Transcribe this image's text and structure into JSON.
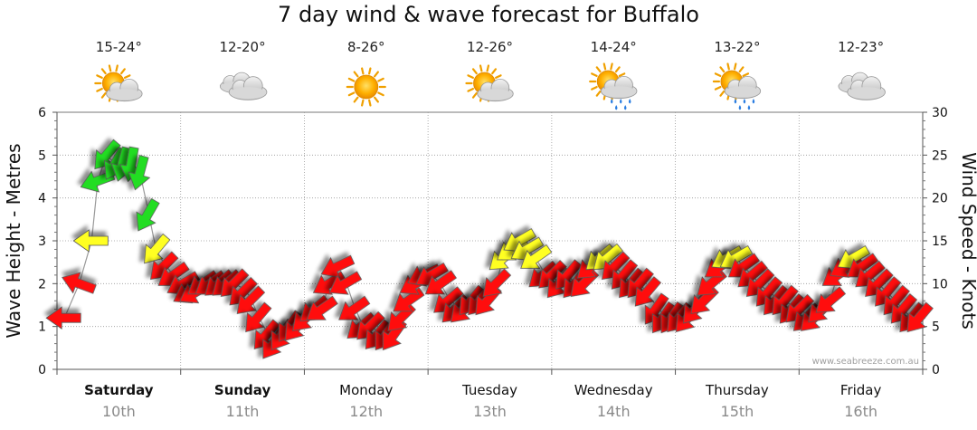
{
  "title": "7 day wind & wave forecast for Buffalo",
  "credit": "www.seabreeze.com.au",
  "days": [
    {
      "name": "Saturday",
      "date": "10th",
      "temp": "15-24°",
      "icon": "sun-cloud-icon",
      "bold": true
    },
    {
      "name": "Sunday",
      "date": "11th",
      "temp": "12-20°",
      "icon": "cloud-icon",
      "bold": true
    },
    {
      "name": "Monday",
      "date": "12th",
      "temp": "8-26°",
      "icon": "sun-icon",
      "bold": false
    },
    {
      "name": "Tuesday",
      "date": "13th",
      "temp": "12-26°",
      "icon": "sun-cloud-icon",
      "bold": false
    },
    {
      "name": "Wednesday",
      "date": "14th",
      "temp": "14-24°",
      "icon": "sun-cloud-rain-icon",
      "bold": false
    },
    {
      "name": "Thursday",
      "date": "15th",
      "temp": "13-22°",
      "icon": "sun-cloud-rain-icon",
      "bold": false
    },
    {
      "name": "Friday",
      "date": "16th",
      "temp": "12-23°",
      "icon": "cloud-icon",
      "bold": false
    }
  ],
  "chart_data": {
    "type": "line",
    "title": "7 day wind & wave forecast for Buffalo",
    "ylabel_left": "Wave Height - Metres",
    "ylabel_right": "Wind Speed - Knots",
    "ylim_left": [
      0,
      6
    ],
    "ylim_right": [
      0,
      30
    ],
    "yticks_left": [
      "0",
      "1",
      "2",
      "3",
      "4",
      "5",
      "6"
    ],
    "yticks_right": [
      "0",
      "5",
      "10",
      "15",
      "20",
      "25",
      "30"
    ],
    "x_range_days": [
      0,
      7
    ],
    "grid": true,
    "colors": {
      "green": "#22dd22",
      "yellow": "#ffff22",
      "red": "#ff1111",
      "line": "#999999"
    },
    "wind_series": {
      "name": "Wind Speed",
      "unit": "knots",
      "x_days": [
        0.06,
        0.18,
        0.28,
        0.33,
        0.4,
        0.47,
        0.53,
        0.6,
        0.67,
        0.73,
        0.8,
        0.86,
        0.94,
        1.02,
        1.07,
        1.12,
        1.18,
        1.24,
        1.31,
        1.37,
        1.43,
        1.5,
        1.56,
        1.62,
        1.69,
        1.75,
        1.82,
        1.88,
        1.94,
        2.01,
        2.08,
        2.14,
        2.2,
        2.27,
        2.33,
        2.4,
        2.46,
        2.53,
        2.59,
        2.66,
        2.72,
        2.78,
        2.84,
        2.9,
        2.97,
        3.03,
        3.1,
        3.16,
        3.22,
        3.29,
        3.35,
        3.42,
        3.48,
        3.55,
        3.61,
        3.68,
        3.74,
        3.8,
        3.87,
        3.93,
        4.0,
        4.06,
        4.13,
        4.19,
        4.26,
        4.32,
        4.39,
        4.45,
        4.51,
        4.58,
        4.64,
        4.71,
        4.77,
        4.84,
        4.9,
        4.97,
        5.03,
        5.1,
        5.16,
        5.23,
        5.29,
        5.36,
        5.42,
        5.49,
        5.55,
        5.62,
        5.68,
        5.75,
        5.81,
        5.88,
        5.94,
        6.0,
        6.06,
        6.12,
        6.18,
        6.25,
        6.31,
        6.38,
        6.44,
        6.51,
        6.57,
        6.64,
        6.71,
        6.78,
        6.84,
        6.91,
        6.97
      ],
      "values": [
        6,
        10,
        15,
        22,
        25,
        24,
        24,
        24,
        23,
        18,
        14,
        12,
        11,
        10,
        9,
        9,
        10,
        10,
        10,
        10,
        10,
        9,
        8,
        6,
        4,
        3,
        4,
        5,
        5,
        6,
        7,
        7,
        10,
        12,
        10,
        7,
        5,
        5,
        4,
        4,
        4,
        6,
        8,
        10,
        11,
        11,
        10,
        8,
        7,
        7,
        8,
        8,
        8,
        10,
        13,
        14,
        15,
        14,
        13,
        11,
        11,
        10,
        11,
        10,
        10,
        12,
        13,
        13,
        12,
        11,
        10,
        10,
        9,
        7,
        6,
        6,
        6,
        6,
        7,
        8,
        10,
        12,
        13,
        13,
        12,
        11,
        10,
        9,
        8,
        8,
        7,
        7,
        6,
        6,
        7,
        8,
        11,
        12,
        13,
        12,
        11,
        10,
        9,
        8,
        7,
        6,
        6
      ],
      "directions_deg": [
        270,
        250,
        270,
        290,
        320,
        330,
        345,
        350,
        345,
        330,
        320,
        315,
        305,
        300,
        300,
        300,
        305,
        305,
        310,
        310,
        315,
        315,
        315,
        320,
        320,
        325,
        325,
        325,
        320,
        315,
        310,
        305,
        300,
        295,
        300,
        305,
        310,
        315,
        320,
        325,
        325,
        315,
        305,
        300,
        295,
        300,
        305,
        310,
        315,
        315,
        320,
        320,
        320,
        315,
        310,
        305,
        300,
        300,
        305,
        310,
        315,
        320,
        320,
        320,
        315,
        310,
        310,
        310,
        315,
        320,
        320,
        320,
        320,
        325,
        325,
        325,
        320,
        320,
        320,
        315,
        310,
        305,
        300,
        300,
        305,
        310,
        315,
        320,
        320,
        320,
        320,
        315,
        315,
        315,
        315,
        310,
        305,
        300,
        300,
        305,
        310,
        315,
        320,
        320,
        320,
        320,
        320
      ]
    },
    "wave_series": {
      "name": "Wave Height",
      "unit": "metres",
      "x_days": [
        0.06,
        0.18,
        0.28,
        0.33,
        0.4,
        0.47,
        0.53,
        0.6,
        0.67,
        0.73,
        0.8,
        0.86,
        0.94,
        1.02,
        1.07,
        1.12,
        1.18,
        1.24,
        1.31,
        1.37,
        1.43,
        1.5,
        1.56,
        1.62,
        1.69,
        1.75,
        1.82,
        1.88,
        1.94,
        2.01,
        2.08,
        2.14,
        2.2,
        2.27,
        2.33,
        2.4,
        2.46,
        2.53,
        2.59,
        2.66,
        2.72,
        2.78,
        2.84,
        2.9,
        2.97,
        3.03,
        3.1,
        3.16,
        3.22,
        3.29,
        3.35,
        3.42,
        3.48,
        3.55,
        3.61,
        3.68,
        3.74,
        3.8,
        3.87,
        3.93,
        4.0,
        4.06,
        4.13,
        4.19,
        4.26,
        4.32,
        4.39,
        4.45,
        4.51,
        4.58,
        4.64,
        4.71,
        4.77,
        4.84,
        4.9,
        4.97,
        5.03,
        5.1,
        5.16,
        5.23,
        5.29,
        5.36,
        5.42,
        5.49,
        5.55,
        5.62,
        5.68,
        5.75,
        5.81,
        5.88,
        5.94,
        6.0,
        6.06,
        6.12,
        6.18,
        6.25,
        6.31,
        6.38,
        6.44,
        6.51,
        6.57,
        6.64,
        6.71,
        6.78,
        6.84,
        6.91,
        6.97
      ],
      "values": [
        1.2,
        2.0,
        3.0,
        4.4,
        5.0,
        4.8,
        4.7,
        4.7,
        4.6,
        3.8,
        2.8,
        2.5,
        2.2,
        2.0,
        1.9,
        1.9,
        2.0,
        2.0,
        2.0,
        2.0,
        2.0,
        1.9,
        1.7,
        1.3,
        0.9,
        0.8,
        0.9,
        1.0,
        1.1,
        1.2,
        1.3,
        1.4,
        2.0,
        2.4,
        2.1,
        1.5,
        1.1,
        1.0,
        0.9,
        0.9,
        0.9,
        1.2,
        1.6,
        2.0,
        2.2,
        2.2,
        2.0,
        1.7,
        1.5,
        1.5,
        1.6,
        1.6,
        1.7,
        2.0,
        2.6,
        2.8,
        3.0,
        2.8,
        2.6,
        2.3,
        2.2,
        2.0,
        2.2,
        2.0,
        2.0,
        2.4,
        2.6,
        2.6,
        2.4,
        2.2,
        2.0,
        2.0,
        1.8,
        1.5,
        1.3,
        1.2,
        1.2,
        1.2,
        1.3,
        1.6,
        2.0,
        2.4,
        2.6,
        2.6,
        2.4,
        2.2,
        2.0,
        1.8,
        1.7,
        1.6,
        1.5,
        1.4,
        1.3,
        1.3,
        1.4,
        1.6,
        2.2,
        2.4,
        2.6,
        2.4,
        2.2,
        2.0,
        1.8,
        1.6,
        1.4,
        1.2,
        1.2
      ]
    }
  }
}
